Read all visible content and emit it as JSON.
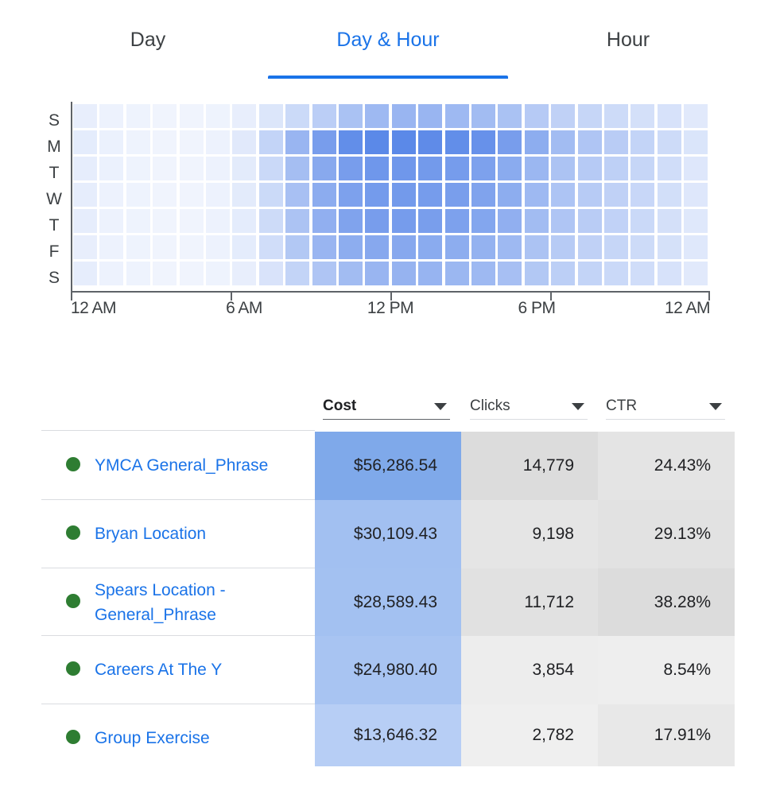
{
  "tabs": [
    {
      "label": "Day",
      "active": false
    },
    {
      "label": "Day & Hour",
      "active": true
    },
    {
      "label": "Hour",
      "active": false
    }
  ],
  "colors": {
    "accent": "#1a73e8",
    "status_dot": "#2e7d32",
    "heat_low": "#f5f8fe",
    "heat_high": "#4e7fe6"
  },
  "chart_data": {
    "type": "heatmap",
    "title": "",
    "xlabel": "",
    "ylabel": "",
    "rows": [
      "S",
      "M",
      "T",
      "W",
      "T",
      "F",
      "S"
    ],
    "x_tick_labels": [
      "12 AM",
      "6 AM",
      "12 PM",
      "6 PM",
      "12 AM"
    ],
    "hours": 24,
    "values": [
      [
        8,
        5,
        4,
        3,
        3,
        4,
        8,
        15,
        25,
        35,
        45,
        52,
        55,
        55,
        52,
        50,
        45,
        38,
        32,
        28,
        24,
        20,
        18,
        12
      ],
      [
        10,
        6,
        4,
        3,
        3,
        5,
        12,
        30,
        55,
        75,
        88,
        92,
        92,
        90,
        88,
        85,
        75,
        62,
        50,
        42,
        36,
        30,
        24,
        16
      ],
      [
        9,
        6,
        4,
        3,
        3,
        5,
        11,
        26,
        48,
        65,
        75,
        80,
        80,
        78,
        76,
        72,
        64,
        54,
        44,
        38,
        33,
        28,
        22,
        14
      ],
      [
        9,
        5,
        4,
        3,
        3,
        5,
        11,
        25,
        46,
        63,
        72,
        77,
        78,
        76,
        74,
        70,
        62,
        52,
        43,
        37,
        32,
        27,
        21,
        14
      ],
      [
        9,
        5,
        4,
        3,
        3,
        5,
        10,
        24,
        44,
        60,
        70,
        75,
        76,
        74,
        72,
        68,
        60,
        50,
        42,
        36,
        31,
        26,
        20,
        13
      ],
      [
        8,
        5,
        4,
        3,
        3,
        5,
        10,
        22,
        40,
        55,
        62,
        66,
        66,
        64,
        62,
        58,
        52,
        44,
        37,
        32,
        28,
        24,
        19,
        13
      ],
      [
        9,
        5,
        4,
        3,
        3,
        4,
        8,
        17,
        30,
        42,
        50,
        55,
        57,
        56,
        54,
        52,
        47,
        40,
        34,
        30,
        26,
        22,
        18,
        12
      ]
    ],
    "vmin": 0,
    "vmax": 100,
    "grid": false,
    "legend": "none"
  },
  "table": {
    "columns": [
      {
        "label": "Cost",
        "sorted": true
      },
      {
        "label": "Clicks",
        "sorted": false
      },
      {
        "label": "CTR",
        "sorted": false
      }
    ],
    "rows": [
      {
        "name_lines": [
          "YMCA General_Phrase"
        ],
        "cost": "$56,286.54",
        "clicks": "14,779",
        "ctr": "24.43%",
        "cost_level": 1.0,
        "clicks_level": 1.0,
        "ctr_level": 0.64
      },
      {
        "name_lines": [
          "Bryan Location"
        ],
        "cost": "$30,109.43",
        "clicks": "9,198",
        "ctr": "29.13%",
        "cost_level": 0.53,
        "clicks_level": 0.62,
        "ctr_level": 0.76
      },
      {
        "name_lines": [
          "Spears Location -",
          "General_Phrase"
        ],
        "cost": "$28,589.43",
        "clicks": "11,712",
        "ctr": "38.28%",
        "cost_level": 0.51,
        "clicks_level": 0.79,
        "ctr_level": 1.0
      },
      {
        "name_lines": [
          "Careers At The Y"
        ],
        "cost": "$24,980.40",
        "clicks": "3,854",
        "ctr": "8.54%",
        "cost_level": 0.44,
        "clicks_level": 0.26,
        "ctr_level": 0.22
      },
      {
        "name_lines": [
          "Group Exercise"
        ],
        "cost": "$13,646.32",
        "clicks": "2,782",
        "ctr": "17.91%",
        "cost_level": 0.24,
        "clicks_level": 0.19,
        "ctr_level": 0.47
      }
    ]
  }
}
